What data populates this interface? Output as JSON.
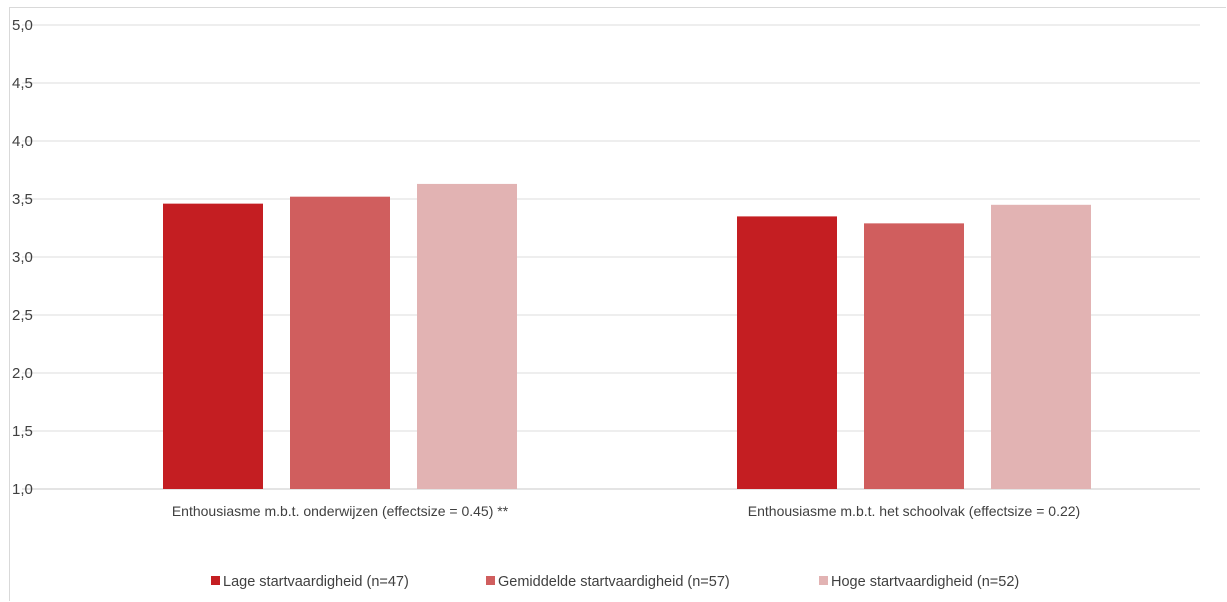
{
  "chart_data": {
    "type": "bar",
    "title": "",
    "xlabel": "",
    "ylabel": "",
    "ylim": [
      1.0,
      5.0
    ],
    "yticks": [
      "1,0",
      "1,5",
      "2,0",
      "2,5",
      "3,0",
      "3,5",
      "4,0",
      "4,5",
      "5,0"
    ],
    "grid": true,
    "legend_position": "bottom",
    "categories": [
      "Enthousiasme m.b.t. onderwijzen (effectsize = 0.45) **",
      "Enthousiasme m.b.t. het schoolvak (effectsize = 0.22)"
    ],
    "series": [
      {
        "name": "Lage startvaardigheid (n=47)",
        "color": "#c41e22",
        "values": [
          3.46,
          3.35
        ]
      },
      {
        "name": "Gemiddelde startvaardigheid (n=57)",
        "color": "#d05e5e",
        "values": [
          3.52,
          3.29
        ]
      },
      {
        "name": "Hoge startvaardigheid (n=52)",
        "color": "#e2b3b3",
        "values": [
          3.63,
          3.45
        ]
      }
    ]
  }
}
